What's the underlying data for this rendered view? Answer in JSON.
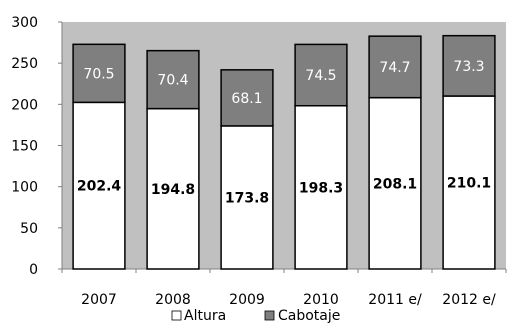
{
  "chart_data": {
    "type": "bar",
    "stacked": true,
    "categories": [
      "2007",
      "2008",
      "2009",
      "2010",
      "2011 e/",
      "2012 e/"
    ],
    "series": [
      {
        "name": "Altura",
        "values": [
          202.4,
          194.8,
          173.8,
          198.3,
          208.1,
          210.1
        ],
        "color": "#ffffff"
      },
      {
        "name": "Cabotaje",
        "values": [
          70.5,
          70.4,
          68.1,
          74.5,
          74.7,
          73.3
        ],
        "color": "#7f7f7f"
      }
    ],
    "y_ticks": [
      "0",
      "50",
      "100",
      "150",
      "200",
      "250",
      "300"
    ],
    "ylim": [
      0,
      300
    ],
    "plot_background": "#c0c0c0",
    "bar_outline": "#000000",
    "grid": false,
    "legend_position": "bottom"
  }
}
